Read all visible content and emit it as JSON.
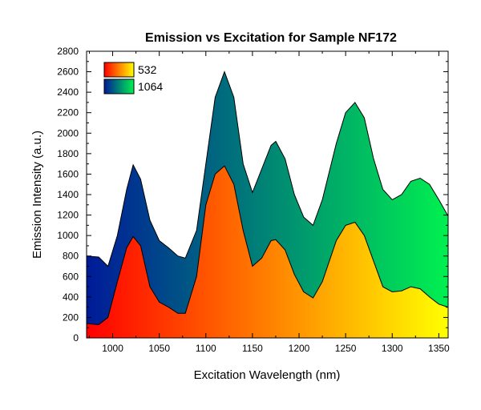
{
  "chart_data": {
    "type": "area",
    "title": "Emission vs Excitation for Sample NF172",
    "xlabel": "Excitation Wavelength (nm)",
    "ylabel": "Emission Intensity (a.u.)",
    "xlim": [
      972,
      1360
    ],
    "ylim": [
      0,
      2800
    ],
    "xticks": [
      1000,
      1050,
      1100,
      1150,
      1200,
      1250,
      1300,
      1350
    ],
    "yticks": [
      0,
      200,
      400,
      600,
      800,
      1000,
      1200,
      1400,
      1600,
      1800,
      2000,
      2200,
      2400,
      2600,
      2800
    ],
    "legend_position": "top-left",
    "x": [
      972,
      985,
      995,
      1005,
      1015,
      1022,
      1030,
      1040,
      1050,
      1060,
      1070,
      1078,
      1090,
      1100,
      1110,
      1120,
      1130,
      1140,
      1150,
      1160,
      1170,
      1175,
      1185,
      1195,
      1205,
      1215,
      1225,
      1240,
      1250,
      1260,
      1270,
      1280,
      1290,
      1300,
      1310,
      1320,
      1330,
      1340,
      1350,
      1360
    ],
    "series": [
      {
        "name": "1064",
        "gradient": [
          "#001a99",
          "#00f050"
        ],
        "values": [
          800,
          790,
          700,
          1000,
          1450,
          1690,
          1550,
          1150,
          950,
          880,
          800,
          780,
          1050,
          1700,
          2350,
          2600,
          2350,
          1700,
          1420,
          1650,
          1880,
          1920,
          1750,
          1400,
          1180,
          1100,
          1350,
          1900,
          2200,
          2300,
          2150,
          1750,
          1450,
          1350,
          1400,
          1530,
          1560,
          1500,
          1350,
          1190
        ]
      },
      {
        "name": "532",
        "gradient": [
          "#ff0000",
          "#ffff00"
        ],
        "values": [
          140,
          130,
          200,
          550,
          880,
          990,
          900,
          500,
          350,
          300,
          240,
          240,
          600,
          1300,
          1600,
          1680,
          1500,
          1050,
          700,
          780,
          950,
          960,
          860,
          620,
          450,
          390,
          550,
          950,
          1100,
          1130,
          1000,
          750,
          500,
          450,
          460,
          500,
          480,
          400,
          330,
          300
        ]
      }
    ]
  }
}
